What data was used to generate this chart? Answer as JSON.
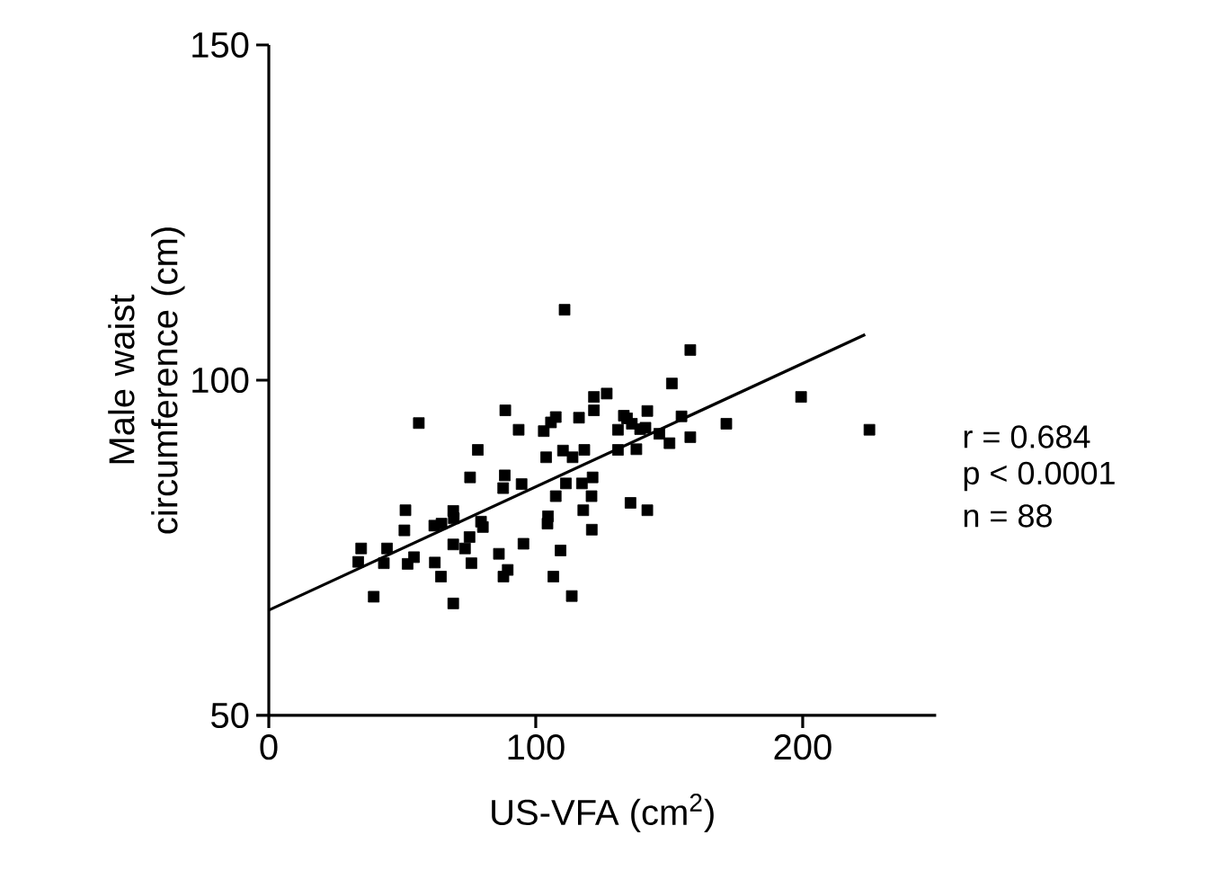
{
  "chart_data": {
    "type": "scatter",
    "xlabel": "US-VFA (cm$^{2}$)",
    "ylabel": "Male waist circumference (cm)",
    "xlim": [
      0,
      250
    ],
    "ylim": [
      50,
      150
    ],
    "xticks": [
      0,
      100,
      200
    ],
    "yticks": [
      50,
      100,
      150
    ],
    "grid": false,
    "annotations": [
      "r = 0.684",
      "p < 0.0001",
      "n = 88"
    ],
    "series": [
      {
        "type": "scatter",
        "marker": "square",
        "color": "#000000",
        "x": [
          110.8,
          157.9,
          151,
          199.4,
          225,
          171.4,
          157.9,
          154.6,
          150.1,
          146.3,
          141.8,
          141.1,
          137.7,
          136,
          133,
          130.8,
          130.8,
          126.6,
          121.8,
          121.8,
          116.2,
          107.5,
          105.7,
          103,
          93.6,
          88.6,
          56.2,
          78.3,
          103.9,
          110.2,
          113.8,
          118.2,
          121.3,
          117.3,
          120.9,
          111.3,
          107.5,
          117.8,
          121,
          135.5,
          141.8,
          104.6,
          104.4,
          109.3,
          106.6,
          113.5,
          95.4,
          94.7,
          88.4,
          87.8,
          75.4,
          86.2,
          89.5,
          87.9,
          80.2,
          75.2,
          75.9,
          73.5,
          69.1,
          69.1,
          69.1,
          64.7,
          64.5,
          62.2,
          62,
          51.2,
          50.8,
          54.4,
          52,
          44.3,
          43.1,
          34.6,
          33.5,
          39.3,
          79.5,
          69.3,
          134.2,
          139.1
        ],
        "values": [
          110.5,
          104.5,
          99.5,
          97.5,
          92.6,
          93.5,
          91.5,
          94.6,
          90.6,
          92,
          95.4,
          92.9,
          89.7,
          93.5,
          94.7,
          92.6,
          89.6,
          98,
          97.5,
          95.5,
          94.4,
          94.5,
          93.7,
          92.4,
          92.6,
          95.5,
          93.6,
          89.6,
          88.5,
          89.5,
          88.5,
          89.6,
          85.5,
          84.6,
          82.7,
          84.6,
          82.7,
          80.6,
          77.7,
          81.7,
          80.6,
          79.7,
          78.6,
          74.6,
          70.7,
          67.8,
          75.6,
          84.5,
          85.8,
          83.9,
          85.5,
          74.1,
          71.7,
          70.7,
          78.1,
          76.6,
          72.7,
          74.9,
          75.5,
          80.5,
          66.7,
          78.6,
          70.7,
          72.8,
          78.3,
          80.6,
          77.6,
          73.6,
          72.6,
          74.9,
          72.7,
          74.9,
          72.9,
          67.7,
          78.9,
          79.4,
          94.3,
          92.7
        ]
      },
      {
        "type": "line",
        "color": "#000000",
        "x": [
          0,
          223.4
        ],
        "values": [
          65.7,
          106.8
        ]
      }
    ]
  }
}
